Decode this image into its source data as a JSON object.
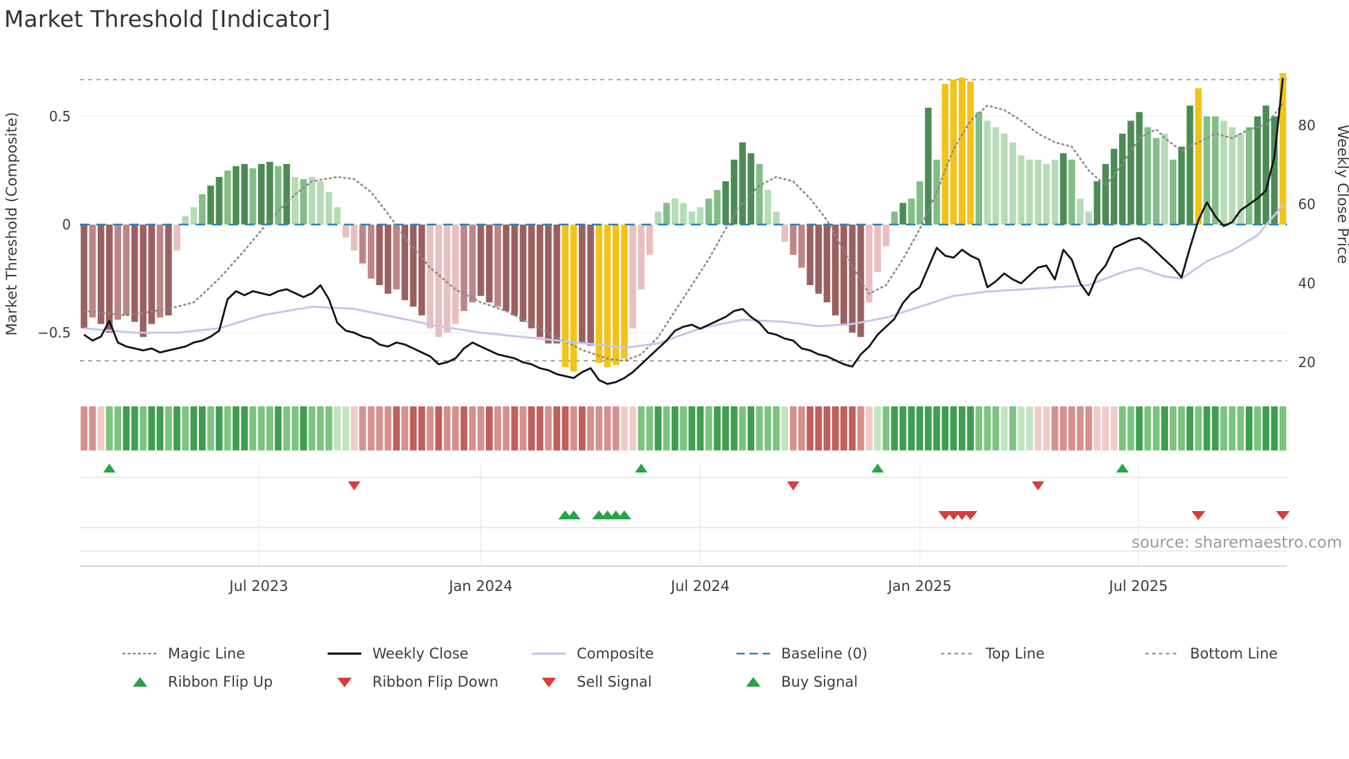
{
  "title": "Market Threshold [Indicator]",
  "source": "source: sharemaestro.com",
  "axes": {
    "left_label": "Market Threshold (Composite)",
    "right_label": "Weekly Close Price",
    "left_ticks": [
      {
        "label": "0.5",
        "value": 0.5
      },
      {
        "label": "0",
        "value": 0
      },
      {
        "label": "−0.5",
        "value": -0.5
      }
    ],
    "right_ticks": [
      {
        "label": "80",
        "value": 80
      },
      {
        "label": "60",
        "value": 60
      },
      {
        "label": "40",
        "value": 40
      },
      {
        "label": "20",
        "value": 20
      }
    ],
    "x_ticks": [
      {
        "label": "Jul 2023",
        "week": 21.2
      },
      {
        "label": "Jan 2024",
        "week": 47.5
      },
      {
        "label": "Jul 2024",
        "week": 73.5
      },
      {
        "label": "Jan 2025",
        "week": 99.5
      },
      {
        "label": "Jul 2025",
        "week": 125.4
      }
    ]
  },
  "chart_data": {
    "type": "bar",
    "subtype": "composite indicator: threshold histogram + overlay lines + signal ribbon",
    "x_unit": "week",
    "n_weeks": 143,
    "left_axis_range": [
      -0.75,
      0.75
    ],
    "right_axis_range": [
      13,
      95
    ],
    "top_line": 0.67,
    "bottom_line": -0.63,
    "baseline": 0,
    "threshold_bars": {
      "values": [
        -0.48,
        -0.43,
        -0.46,
        -0.5,
        -0.44,
        -0.42,
        -0.45,
        -0.52,
        -0.46,
        -0.43,
        -0.42,
        -0.12,
        0.04,
        0.08,
        0.14,
        0.18,
        0.22,
        0.25,
        0.27,
        0.28,
        0.26,
        0.28,
        0.29,
        0.27,
        0.28,
        0.22,
        0.21,
        0.22,
        0.2,
        0.15,
        0.08,
        -0.06,
        -0.12,
        -0.18,
        -0.25,
        -0.28,
        -0.32,
        -0.3,
        -0.35,
        -0.38,
        -0.42,
        -0.48,
        -0.52,
        -0.5,
        -0.46,
        -0.4,
        -0.36,
        -0.33,
        -0.36,
        -0.38,
        -0.4,
        -0.42,
        -0.45,
        -0.48,
        -0.52,
        -0.55,
        -0.55,
        -0.66,
        -0.68,
        -0.55,
        -0.56,
        -0.64,
        -0.66,
        -0.65,
        -0.62,
        -0.48,
        -0.3,
        -0.14,
        0.06,
        0.1,
        0.12,
        0.1,
        0.06,
        0.08,
        0.12,
        0.16,
        0.2,
        0.3,
        0.38,
        0.33,
        0.28,
        0.16,
        0.06,
        -0.08,
        -0.14,
        -0.2,
        -0.28,
        -0.32,
        -0.36,
        -0.42,
        -0.46,
        -0.5,
        -0.52,
        -0.36,
        -0.22,
        -0.1,
        0.06,
        0.1,
        0.12,
        0.2,
        0.54,
        0.3,
        0.65,
        0.67,
        0.68,
        0.66,
        0.52,
        0.48,
        0.45,
        0.42,
        0.38,
        0.32,
        0.3,
        0.3,
        0.28,
        0.3,
        0.33,
        0.3,
        0.12,
        0.06,
        0.2,
        0.28,
        0.35,
        0.42,
        0.48,
        0.52,
        0.45,
        0.4,
        0.42,
        0.3,
        0.36,
        0.55,
        0.63,
        0.5,
        0.5,
        0.48,
        0.45,
        0.42,
        0.45,
        0.5,
        0.55,
        0.5,
        0.7
      ],
      "colors": [
        "dr",
        "mr",
        "dr",
        "dr",
        "mr",
        "mr",
        "dr",
        "dr",
        "dr",
        "mr",
        "dr",
        "lr",
        "lg",
        "lg",
        "mg",
        "dg",
        "dg",
        "mg",
        "dg",
        "dg",
        "mg",
        "dg",
        "dg",
        "mg",
        "dg",
        "lg",
        "mg",
        "lg",
        "lg",
        "lg",
        "lg",
        "lr",
        "lr",
        "mr",
        "mr",
        "dr",
        "dr",
        "mr",
        "dr",
        "dr",
        "dr",
        "lr",
        "lr",
        "lr",
        "lr",
        "mr",
        "mr",
        "dr",
        "dr",
        "mr",
        "dr",
        "dr",
        "dr",
        "dr",
        "dr",
        "dr",
        "dr",
        "au",
        "au",
        "dr",
        "dr",
        "au",
        "au",
        "au",
        "au",
        "lr",
        "lr",
        "lr",
        "lg",
        "mg",
        "lg",
        "lg",
        "lg",
        "lg",
        "mg",
        "mg",
        "dg",
        "dg",
        "dg",
        "dg",
        "mg",
        "lg",
        "lg",
        "lr",
        "mr",
        "mr",
        "dr",
        "dr",
        "dr",
        "dr",
        "dr",
        "dr",
        "dr",
        "lr",
        "lr",
        "lr",
        "mg",
        "dg",
        "mg",
        "mg",
        "dg",
        "mg",
        "au",
        "au",
        "au",
        "au",
        "mg",
        "lg",
        "lg",
        "lg",
        "lg",
        "lg",
        "lg",
        "lg",
        "lg",
        "lg",
        "dg",
        "mg",
        "lg",
        "lg",
        "dg",
        "dg",
        "dg",
        "dg",
        "dg",
        "dg",
        "mg",
        "mg",
        "lg",
        "mg",
        "dg",
        "dg",
        "au",
        "mg",
        "mg",
        "lg",
        "lg",
        "lg",
        "mg",
        "dg",
        "dg",
        "dg",
        "au"
      ]
    },
    "weekly_close": [
      27,
      25.5,
      26.5,
      30.5,
      25,
      24,
      23.5,
      23,
      23.5,
      22.5,
      23,
      23.5,
      24,
      25,
      25.5,
      26.5,
      28,
      36,
      38,
      37,
      38,
      37.5,
      37,
      38,
      38.5,
      37.5,
      36.5,
      37.5,
      39.5,
      36,
      30,
      28,
      27.5,
      26.5,
      26,
      24.5,
      24,
      25,
      24.5,
      23.5,
      22.5,
      21.5,
      19.5,
      20,
      21,
      23.5,
      25,
      24,
      23,
      22,
      21.5,
      21,
      20,
      19.5,
      18.5,
      18,
      17,
      16.5,
      16,
      17.5,
      18.5,
      15.5,
      14.5,
      15,
      16,
      17.5,
      19.5,
      21.5,
      23.5,
      25.5,
      28,
      29,
      29.5,
      28.5,
      29.5,
      30.5,
      31.5,
      33,
      33.5,
      31.5,
      30,
      27.5,
      27,
      26,
      25.5,
      23.5,
      23,
      22,
      21.5,
      20.5,
      19.5,
      18.9,
      22,
      24,
      27,
      29,
      31,
      35,
      37.5,
      39,
      44,
      49,
      47,
      46.5,
      48.5,
      47,
      46,
      39,
      40.5,
      42.5,
      41,
      40,
      42,
      44,
      44.5,
      41,
      48.5,
      46,
      40,
      37,
      42,
      44.5,
      49,
      50,
      51,
      51.5,
      50,
      48,
      46,
      44,
      41.5,
      49,
      56,
      60.5,
      57,
      54.5,
      55.5,
      58.5,
      60,
      61.5,
      63.5,
      72,
      92
    ],
    "composite": [
      -0.48,
      -0.483,
      -0.487,
      -0.49,
      -0.493,
      -0.497,
      -0.5,
      -0.5,
      -0.5,
      -0.5,
      -0.5,
      -0.5,
      -0.496,
      -0.492,
      -0.488,
      -0.484,
      -0.48,
      -0.468,
      -0.456,
      -0.444,
      -0.432,
      -0.42,
      -0.413,
      -0.407,
      -0.4,
      -0.393,
      -0.387,
      -0.38,
      -0.382,
      -0.384,
      -0.386,
      -0.388,
      -0.39,
      -0.398,
      -0.406,
      -0.414,
      -0.422,
      -0.43,
      -0.438,
      -0.446,
      -0.454,
      -0.462,
      -0.47,
      -0.476,
      -0.482,
      -0.488,
      -0.494,
      -0.5,
      -0.504,
      -0.508,
      -0.512,
      -0.516,
      -0.52,
      -0.524,
      -0.528,
      -0.532,
      -0.536,
      -0.54,
      -0.544,
      -0.548,
      -0.552,
      -0.556,
      -0.56,
      -0.565,
      -0.57,
      -0.565,
      -0.56,
      -0.555,
      -0.55,
      -0.536,
      -0.522,
      -0.508,
      -0.494,
      -0.48,
      -0.472,
      -0.464,
      -0.456,
      -0.448,
      -0.44,
      -0.442,
      -0.444,
      -0.446,
      -0.448,
      -0.45,
      -0.455,
      -0.46,
      -0.465,
      -0.47,
      -0.468,
      -0.465,
      -0.463,
      -0.46,
      -0.453,
      -0.445,
      -0.438,
      -0.43,
      -0.418,
      -0.405,
      -0.393,
      -0.38,
      -0.368,
      -0.355,
      -0.343,
      -0.33,
      -0.325,
      -0.32,
      -0.315,
      -0.31,
      -0.308,
      -0.305,
      -0.303,
      -0.3,
      -0.298,
      -0.295,
      -0.293,
      -0.29,
      -0.288,
      -0.285,
      -0.283,
      -0.28,
      -0.265,
      -0.25,
      -0.235,
      -0.22,
      -0.21,
      -0.2,
      -0.213,
      -0.227,
      -0.24,
      -0.245,
      -0.25,
      -0.223,
      -0.197,
      -0.17,
      -0.153,
      -0.137,
      -0.12,
      -0.097,
      -0.073,
      -0.05,
      -0.003,
      0.043,
      0.09
    ],
    "magic_line": [
      -0.4,
      -0.404,
      -0.408,
      -0.412,
      -0.416,
      -0.42,
      -0.414,
      -0.408,
      -0.402,
      -0.396,
      -0.39,
      -0.38,
      -0.37,
      -0.36,
      -0.323,
      -0.287,
      -0.25,
      -0.207,
      -0.163,
      -0.12,
      -0.073,
      -0.027,
      0.02,
      0.06,
      0.1,
      0.14,
      0.17,
      0.2,
      0.207,
      0.213,
      0.22,
      0.215,
      0.21,
      0.18,
      0.15,
      0.1,
      0.05,
      -0.005,
      -0.06,
      -0.107,
      -0.153,
      -0.2,
      -0.233,
      -0.267,
      -0.3,
      -0.32,
      -0.34,
      -0.36,
      -0.373,
      -0.387,
      -0.4,
      -0.42,
      -0.44,
      -0.46,
      -0.48,
      -0.5,
      -0.52,
      -0.54,
      -0.56,
      -0.58,
      -0.593,
      -0.607,
      -0.62,
      -0.625,
      -0.63,
      -0.615,
      -0.6,
      -0.56,
      -0.52,
      -0.46,
      -0.4,
      -0.34,
      -0.28,
      -0.22,
      -0.16,
      -0.09,
      -0.02,
      0.04,
      0.1,
      0.14,
      0.18,
      0.2,
      0.22,
      0.21,
      0.2,
      0.16,
      0.12,
      0.07,
      0.02,
      -0.05,
      -0.12,
      -0.19,
      -0.26,
      -0.32,
      -0.3,
      -0.28,
      -0.22,
      -0.16,
      -0.09,
      -0.02,
      0.065,
      0.15,
      0.25,
      0.35,
      0.415,
      0.48,
      0.515,
      0.55,
      0.54,
      0.53,
      0.505,
      0.48,
      0.45,
      0.42,
      0.4,
      0.38,
      0.37,
      0.36,
      0.305,
      0.25,
      0.215,
      0.18,
      0.23,
      0.28,
      0.34,
      0.4,
      0.42,
      0.44,
      0.4,
      0.37,
      0.34,
      0.36,
      0.38,
      0.4,
      0.42,
      0.41,
      0.4,
      0.42,
      0.44,
      0.45,
      0.46,
      0.51,
      0.56
    ],
    "ribbon": [
      "r2",
      "r2",
      "r1",
      "g2",
      "g2",
      "g3",
      "g3",
      "g2",
      "g3",
      "g3",
      "g2",
      "g3",
      "g2",
      "g3",
      "g3",
      "g2",
      "g3",
      "g2",
      "g3",
      "g3",
      "g2",
      "g2",
      "g2",
      "g3",
      "g2",
      "g2",
      "g3",
      "g2",
      "g2",
      "g2",
      "g1",
      "g1",
      "r1",
      "r2",
      "r2",
      "r2",
      "r2",
      "r3",
      "r2",
      "r3",
      "r3",
      "r2",
      "r3",
      "r2",
      "r2",
      "r3",
      "r2",
      "r2",
      "r3",
      "r2",
      "r2",
      "r3",
      "r2",
      "r3",
      "r3",
      "r2",
      "r3",
      "r3",
      "r2",
      "r3",
      "r2",
      "r2",
      "r2",
      "r2",
      "r1",
      "r1",
      "g2",
      "g2",
      "g3",
      "g2",
      "g3",
      "g2",
      "g3",
      "g3",
      "g2",
      "g3",
      "g3",
      "g3",
      "g2",
      "g3",
      "g2",
      "g2",
      "g2",
      "g1",
      "r2",
      "r2",
      "r3",
      "r3",
      "r3",
      "r3",
      "r3",
      "r3",
      "r2",
      "r1",
      "g1",
      "g2",
      "g3",
      "g3",
      "g3",
      "g3",
      "g3",
      "g3",
      "g3",
      "g3",
      "g3",
      "g3",
      "g2",
      "g2",
      "g2",
      "g1",
      "g2",
      "g1",
      "g1",
      "r1",
      "r1",
      "r2",
      "r2",
      "r2",
      "r2",
      "r2",
      "r1",
      "r1",
      "r1",
      "g2",
      "g2",
      "g3",
      "g2",
      "g2",
      "g3",
      "g2",
      "g2",
      "g3",
      "g2",
      "g3",
      "g3",
      "g2",
      "g2",
      "g2",
      "g3",
      "g2",
      "g3",
      "g3",
      "g2"
    ],
    "signals": {
      "ribbon_flip_up_weeks": [
        3,
        66,
        94,
        123
      ],
      "ribbon_flip_down_weeks": [
        32,
        84,
        113
      ],
      "buy_signal_weeks": [
        57,
        58,
        61,
        62,
        63,
        64
      ],
      "sell_signal_weeks": [
        102,
        103,
        104,
        105,
        132,
        142
      ]
    }
  },
  "legend": {
    "row1": [
      {
        "label": "Magic Line",
        "glyph": "dotted",
        "color": "#8a8a8a"
      },
      {
        "label": "Weekly Close",
        "glyph": "solid",
        "color": "#141414"
      },
      {
        "label": "Composite",
        "glyph": "solid",
        "color": "#c9c5e8"
      },
      {
        "label": "Baseline (0)",
        "glyph": "dashed-long",
        "color": "#2d80b6"
      },
      {
        "label": "Top Line",
        "glyph": "dashed",
        "color": "#9a9a9a"
      },
      {
        "label": "Bottom Line",
        "glyph": "dashed",
        "color": "#9a9a9a"
      }
    ],
    "row2": [
      {
        "label": "Ribbon Flip Up",
        "glyph": "triangle-up",
        "color": "#27a348"
      },
      {
        "label": "Ribbon Flip Down",
        "glyph": "triangle-down",
        "color": "#da3b3b"
      },
      {
        "label": "Sell Signal",
        "glyph": "triangle-down",
        "color": "#da3b3b"
      },
      {
        "label": "Buy Signal",
        "glyph": "triangle-up",
        "color": "#27a348"
      }
    ]
  },
  "colors": {
    "bar": {
      "dg": "#4c8c54",
      "mg": "#83bd88",
      "lg": "#b5dcb7",
      "dr": "#9c5f5f",
      "mr": "#bd8686",
      "lr": "#e8bfbf",
      "au": "#f3c317"
    },
    "ribbon": {
      "g1": "#c2e4c0",
      "g2": "#7cc47f",
      "g3": "#3f9e4f",
      "r1": "#f0cbc8",
      "r2": "#d69090",
      "r3": "#c05f5c"
    },
    "lines": {
      "magic": "#8a8a8a",
      "weekly_close": "#141414",
      "composite": "#c9c5e8",
      "baseline": "#2d80b6",
      "guide": "#9a9a9a"
    },
    "signals": {
      "up": "#27a348",
      "down": "#da3b3b"
    },
    "text": {
      "primary": "#3c3c3c",
      "muted": "#9a9a9a"
    }
  }
}
